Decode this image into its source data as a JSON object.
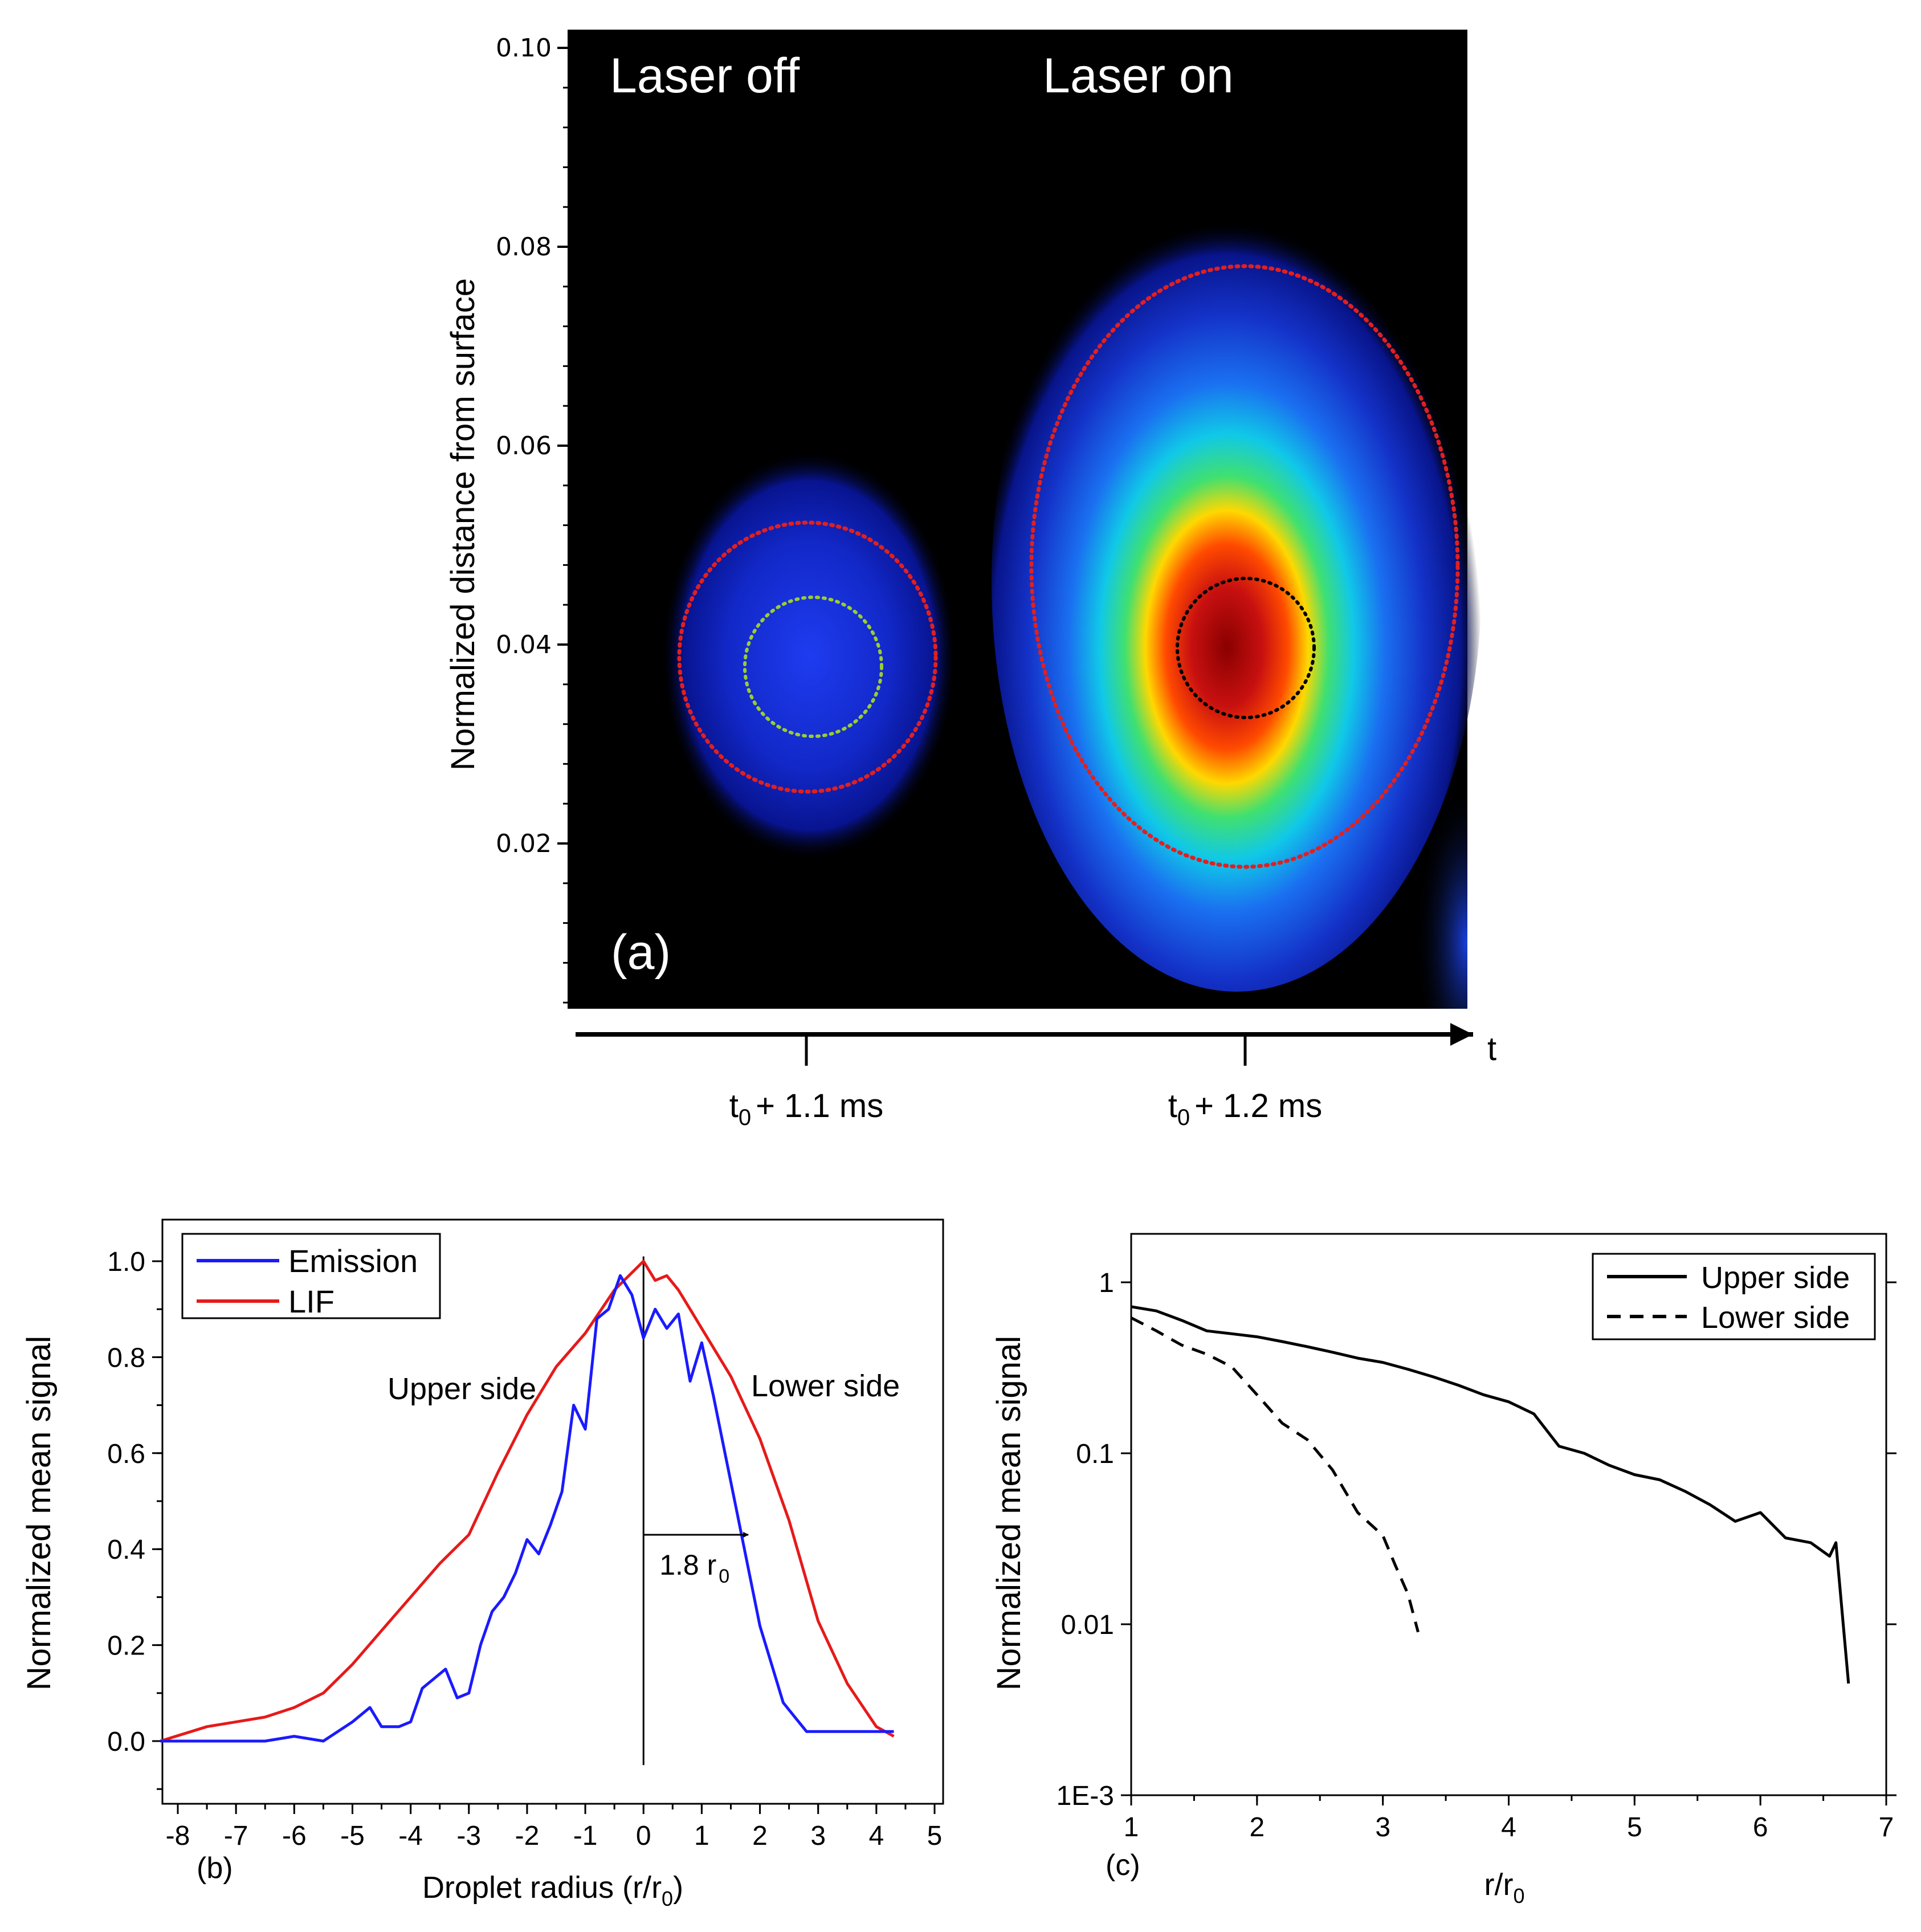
{
  "panel_a": {
    "label": "(a)",
    "left_title": "Laser off",
    "right_title": "Laser on",
    "ylabel": "Normalized distance from surface",
    "yticks": [
      "0.02",
      "0.04",
      "0.06",
      "0.08",
      "0.10"
    ],
    "time_axis_label": "t",
    "time_marks": [
      {
        "base": "t",
        "sub": "0",
        "rest": "+ 1.1 ms"
      },
      {
        "base": "t",
        "sub": "0",
        "rest": "+ 1.2 ms"
      }
    ],
    "colors": {
      "background": "#000000",
      "outer_ellipse": "#e02020",
      "inner_circle_off": "#9acd32",
      "inner_circle_on": "#000000"
    }
  },
  "chart_data": [
    {
      "id": "b",
      "type": "line",
      "label": "(b)",
      "xlabel": "Droplet radius (r/r0)",
      "xlabel_parts": {
        "main": "Droplet radius (r/r",
        "sub": "0",
        "tail": ")"
      },
      "ylabel": "Normalized mean signal",
      "xlim": [
        -8.5,
        5
      ],
      "ylim": [
        -0.1,
        1.1
      ],
      "xticks": [
        -8,
        -7,
        -6,
        -5,
        -4,
        -3,
        -2,
        -1,
        0,
        1,
        2,
        3,
        4,
        5
      ],
      "xtick_labels": [
        "-8",
        "-7",
        "-6",
        "-5",
        "-4",
        "-3",
        "-2",
        "-1",
        "0",
        "1",
        "2",
        "3",
        "4",
        "5"
      ],
      "yticks": [
        0.0,
        0.2,
        0.4,
        0.6,
        0.8,
        1.0
      ],
      "ytick_labels": [
        "0.0",
        "0.2",
        "0.4",
        "0.6",
        "0.8",
        "1.0"
      ],
      "annotations": {
        "upper": "Upper side",
        "lower": "Lower side",
        "arrow_main": "1.8 r",
        "arrow_sub": "0",
        "arrow_from_x": 0,
        "arrow_to_x": 1.8,
        "arrow_y": 0.43
      },
      "legend_position": "top-left",
      "series": [
        {
          "name": "Emission",
          "color": "#1a1aff",
          "x": [
            -8.3,
            -6.5,
            -6.0,
            -5.5,
            -5.0,
            -4.7,
            -4.5,
            -4.2,
            -4.0,
            -3.8,
            -3.6,
            -3.4,
            -3.2,
            -3.0,
            -2.8,
            -2.6,
            -2.4,
            -2.2,
            -2.0,
            -1.8,
            -1.6,
            -1.4,
            -1.2,
            -1.0,
            -0.8,
            -0.6,
            -0.4,
            -0.2,
            0.0,
            0.2,
            0.4,
            0.6,
            0.8,
            1.0,
            1.2,
            1.4,
            1.6,
            1.8,
            2.0,
            2.2,
            2.4,
            2.6,
            2.8,
            3.0,
            3.5,
            4.0,
            4.3
          ],
          "y": [
            0.0,
            0.0,
            0.01,
            0.0,
            0.04,
            0.07,
            0.03,
            0.03,
            0.04,
            0.11,
            0.13,
            0.15,
            0.09,
            0.1,
            0.2,
            0.27,
            0.3,
            0.35,
            0.42,
            0.39,
            0.45,
            0.52,
            0.7,
            0.65,
            0.88,
            0.9,
            0.97,
            0.93,
            0.84,
            0.9,
            0.86,
            0.89,
            0.75,
            0.83,
            0.72,
            0.6,
            0.48,
            0.36,
            0.24,
            0.16,
            0.08,
            0.05,
            0.02,
            0.02,
            0.02,
            0.02,
            0.02
          ]
        },
        {
          "name": "LIF",
          "color": "#e61a1a",
          "x": [
            -8.3,
            -7.5,
            -7.0,
            -6.5,
            -6.0,
            -5.5,
            -5.0,
            -4.5,
            -4.0,
            -3.5,
            -3.0,
            -2.5,
            -2.0,
            -1.5,
            -1.0,
            -0.5,
            0.0,
            0.2,
            0.4,
            0.6,
            0.8,
            1.0,
            1.5,
            2.0,
            2.5,
            3.0,
            3.5,
            4.0,
            4.3
          ],
          "y": [
            0.0,
            0.03,
            0.04,
            0.05,
            0.07,
            0.1,
            0.16,
            0.23,
            0.3,
            0.37,
            0.43,
            0.56,
            0.68,
            0.78,
            0.85,
            0.94,
            1.0,
            0.96,
            0.97,
            0.94,
            0.9,
            0.86,
            0.76,
            0.63,
            0.46,
            0.25,
            0.12,
            0.03,
            0.01
          ]
        }
      ]
    },
    {
      "id": "c",
      "type": "line",
      "label": "(c)",
      "xlabel": "r/r0",
      "xlabel_parts": {
        "main": "r/r",
        "sub": "0",
        "tail": ""
      },
      "ylabel": "Normalized mean signal",
      "xlim": [
        1,
        7
      ],
      "ylim": [
        0.001,
        2
      ],
      "yscale": "log",
      "xticks": [
        1,
        2,
        3,
        4,
        5,
        6,
        7
      ],
      "xtick_labels": [
        "1",
        "2",
        "3",
        "4",
        "5",
        "6",
        "7"
      ],
      "yticks": [
        0.001,
        0.01,
        0.1,
        1
      ],
      "ytick_labels": [
        "1E-3",
        "0.01",
        "0.1",
        "1"
      ],
      "legend_position": "top-right",
      "series": [
        {
          "name": "Upper side",
          "dash": "solid",
          "color": "#000000",
          "x": [
            1.0,
            1.2,
            1.4,
            1.6,
            1.8,
            2.0,
            2.2,
            2.4,
            2.6,
            2.8,
            3.0,
            3.2,
            3.4,
            3.6,
            3.8,
            4.0,
            4.2,
            4.4,
            4.6,
            4.8,
            5.0,
            5.2,
            5.4,
            5.6,
            5.8,
            6.0,
            6.2,
            6.4,
            6.55,
            6.6,
            6.7
          ],
          "y": [
            0.72,
            0.68,
            0.6,
            0.52,
            0.5,
            0.48,
            0.45,
            0.42,
            0.39,
            0.36,
            0.34,
            0.31,
            0.28,
            0.25,
            0.22,
            0.2,
            0.17,
            0.11,
            0.1,
            0.085,
            0.075,
            0.07,
            0.06,
            0.05,
            0.04,
            0.045,
            0.032,
            0.03,
            0.025,
            0.03,
            0.0045
          ]
        },
        {
          "name": "Lower side",
          "dash": "dashed",
          "color": "#000000",
          "x": [
            1.0,
            1.2,
            1.4,
            1.6,
            1.8,
            2.0,
            2.2,
            2.4,
            2.6,
            2.8,
            3.0,
            3.1,
            3.2,
            3.28
          ],
          "y": [
            0.62,
            0.52,
            0.43,
            0.38,
            0.32,
            0.22,
            0.15,
            0.12,
            0.08,
            0.045,
            0.033,
            0.022,
            0.015,
            0.009
          ]
        }
      ]
    }
  ]
}
